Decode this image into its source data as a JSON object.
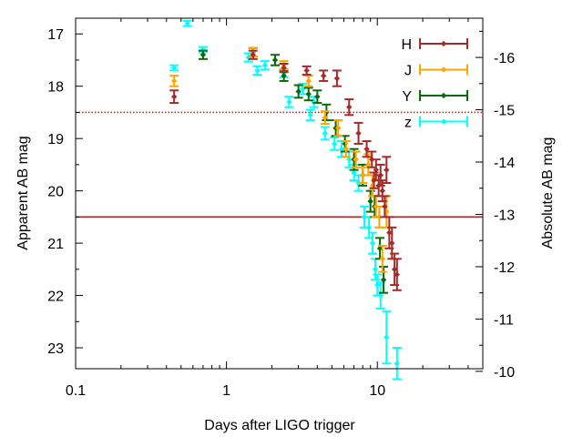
{
  "chart_data": {
    "type": "scatter",
    "xlabel": "Days after LIGO trigger",
    "ylabel": "Apparent AB mag",
    "ylabel_right": "Absolute AB mag",
    "x_scale": "log",
    "xlim": [
      0.1,
      50
    ],
    "ylim": [
      23.4,
      16.7
    ],
    "ylim_right": [
      -10.05,
      -16.75
    ],
    "x_ticks": [
      {
        "value": 0.1,
        "label": "0.1"
      },
      {
        "value": 1,
        "label": "1"
      },
      {
        "value": 10,
        "label": "10"
      }
    ],
    "y_ticks": [
      {
        "value": 17,
        "label": "17"
      },
      {
        "value": 18,
        "label": "18"
      },
      {
        "value": 19,
        "label": "19"
      },
      {
        "value": 20,
        "label": "20"
      },
      {
        "value": 21,
        "label": "21"
      },
      {
        "value": 22,
        "label": "22"
      },
      {
        "value": 23,
        "label": "23"
      }
    ],
    "y_ticks_right": [
      {
        "value": -16,
        "label": "-16"
      },
      {
        "value": -15,
        "label": "-15"
      },
      {
        "value": -14,
        "label": "-14"
      },
      {
        "value": -13,
        "label": "-13"
      },
      {
        "value": -12,
        "label": "-12"
      },
      {
        "value": -11,
        "label": "-11"
      },
      {
        "value": -10,
        "label": "-10"
      }
    ],
    "reference_lines": [
      {
        "y": 18.5,
        "style": "dotted",
        "color": "#a52a2a"
      },
      {
        "y": 20.5,
        "style": "solid",
        "color": "#a52a2a"
      }
    ],
    "legend_position": "top-right",
    "series": [
      {
        "name": "H",
        "color": "#a52a2a",
        "points": [
          [
            0.45,
            18.2,
            0.12
          ],
          [
            1.5,
            17.4,
            0.08
          ],
          [
            2.4,
            17.65,
            0.08
          ],
          [
            3.4,
            17.7,
            0.08
          ],
          [
            4.4,
            17.8,
            0.1
          ],
          [
            5.4,
            17.85,
            0.15
          ],
          [
            6.5,
            18.4,
            0.15
          ],
          [
            7.5,
            18.9,
            0.2
          ],
          [
            8.5,
            19.2,
            0.15
          ],
          [
            9.2,
            19.4,
            0.15
          ],
          [
            9.5,
            19.8,
            0.15
          ],
          [
            9.8,
            19.6,
            0.2
          ],
          [
            10.2,
            19.9,
            0.2
          ],
          [
            10.5,
            19.7,
            0.2
          ],
          [
            10.8,
            20.0,
            0.2
          ],
          [
            11.2,
            20.3,
            0.2
          ],
          [
            11.5,
            19.6,
            0.25
          ],
          [
            12.0,
            20.8,
            0.3
          ],
          [
            12.5,
            21.0,
            0.3
          ],
          [
            13.0,
            21.5,
            0.3
          ],
          [
            13.5,
            21.6,
            0.3
          ]
        ]
      },
      {
        "name": "J",
        "color": "#ffa500",
        "points": [
          [
            0.45,
            17.9,
            0.1
          ],
          [
            1.5,
            17.35,
            0.08
          ],
          [
            2.4,
            17.6,
            0.08
          ],
          [
            3.5,
            17.9,
            0.1
          ],
          [
            4.5,
            18.6,
            0.12
          ],
          [
            5.5,
            18.8,
            0.15
          ],
          [
            6.2,
            19.2,
            0.15
          ],
          [
            7.2,
            19.4,
            0.15
          ],
          [
            8.0,
            19.7,
            0.15
          ],
          [
            8.7,
            19.5,
            0.2
          ],
          [
            9.3,
            19.9,
            0.2
          ],
          [
            9.8,
            20.3,
            0.2
          ],
          [
            10.3,
            20.5,
            0.2
          ],
          [
            10.8,
            21.3,
            0.25
          ],
          [
            11.5,
            20.4,
            0.3
          ]
        ]
      },
      {
        "name": "Y",
        "color": "#0a6a0a",
        "points": [
          [
            0.7,
            17.4,
            0.08
          ],
          [
            1.5,
            17.35,
            0.08
          ],
          [
            2.1,
            17.5,
            0.1
          ],
          [
            2.4,
            17.8,
            0.1
          ],
          [
            3.0,
            18.1,
            0.12
          ],
          [
            3.5,
            18.15,
            0.12
          ],
          [
            4.0,
            18.2,
            0.12
          ],
          [
            4.6,
            18.5,
            0.15
          ],
          [
            5.3,
            18.8,
            0.15
          ],
          [
            6.1,
            19.1,
            0.15
          ],
          [
            7.0,
            19.4,
            0.2
          ],
          [
            8.0,
            19.7,
            0.2
          ],
          [
            9.0,
            20.2,
            0.2
          ],
          [
            9.6,
            20.3,
            0.2
          ],
          [
            10.4,
            21.1,
            0.2
          ],
          [
            11.0,
            21.7,
            0.25
          ]
        ]
      },
      {
        "name": "z",
        "color": "#00ffff",
        "points": [
          [
            0.45,
            17.65,
            0.05
          ],
          [
            0.55,
            16.8,
            0.05
          ],
          [
            0.7,
            17.3,
            0.05
          ],
          [
            1.4,
            17.45,
            0.08
          ],
          [
            1.6,
            17.7,
            0.08
          ],
          [
            1.8,
            17.6,
            0.08
          ],
          [
            2.4,
            17.75,
            0.08
          ],
          [
            2.6,
            18.3,
            0.1
          ],
          [
            3.2,
            18.05,
            0.1
          ],
          [
            3.6,
            18.55,
            0.1
          ],
          [
            3.8,
            18.3,
            0.1
          ],
          [
            4.5,
            18.9,
            0.12
          ],
          [
            5.2,
            19.1,
            0.12
          ],
          [
            5.8,
            19.2,
            0.15
          ],
          [
            6.5,
            19.4,
            0.15
          ],
          [
            7.0,
            19.65,
            0.15
          ],
          [
            7.5,
            19.85,
            0.15
          ],
          [
            8.2,
            20.5,
            0.2
          ],
          [
            8.8,
            20.7,
            0.2
          ],
          [
            9.3,
            21.0,
            0.2
          ],
          [
            9.7,
            21.5,
            0.2
          ],
          [
            10.0,
            21.8,
            0.2
          ],
          [
            10.5,
            22.0,
            0.25
          ],
          [
            11.5,
            22.8,
            0.5
          ],
          [
            13.5,
            23.3,
            0.3
          ]
        ]
      }
    ]
  }
}
